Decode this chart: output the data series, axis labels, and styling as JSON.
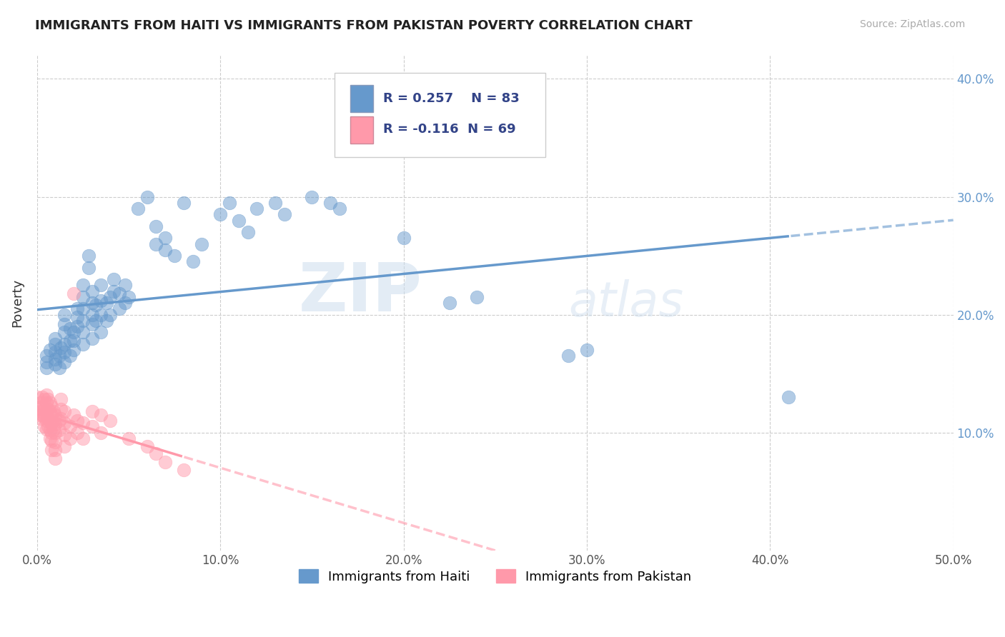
{
  "title": "IMMIGRANTS FROM HAITI VS IMMIGRANTS FROM PAKISTAN POVERTY CORRELATION CHART",
  "source": "Source: ZipAtlas.com",
  "ylabel": "Poverty",
  "xlim": [
    0.0,
    0.5
  ],
  "ylim": [
    0.0,
    0.42
  ],
  "xticks": [
    0.0,
    0.1,
    0.2,
    0.3,
    0.4,
    0.5
  ],
  "yticks": [
    0.1,
    0.2,
    0.3,
    0.4
  ],
  "xtick_labels": [
    "0.0%",
    "10.0%",
    "20.0%",
    "30.0%",
    "40.0%",
    "50.0%"
  ],
  "ytick_labels_right": [
    "10.0%",
    "20.0%",
    "30.0%",
    "40.0%"
  ],
  "haiti_color": "#6699CC",
  "pakistan_color": "#FF99AA",
  "haiti_R": 0.257,
  "haiti_N": 83,
  "pakistan_R": -0.116,
  "pakistan_N": 69,
  "legend_label_haiti": "Immigrants from Haiti",
  "legend_label_pakistan": "Immigrants from Pakistan",
  "watermark_zip": "ZIP",
  "watermark_atlas": "atlas",
  "background_color": "#ffffff",
  "grid_color": "#cccccc",
  "haiti_scatter": [
    [
      0.005,
      0.155
    ],
    [
      0.005,
      0.16
    ],
    [
      0.005,
      0.165
    ],
    [
      0.007,
      0.17
    ],
    [
      0.01,
      0.158
    ],
    [
      0.01,
      0.162
    ],
    [
      0.01,
      0.168
    ],
    [
      0.01,
      0.175
    ],
    [
      0.01,
      0.18
    ],
    [
      0.012,
      0.155
    ],
    [
      0.012,
      0.165
    ],
    [
      0.013,
      0.172
    ],
    [
      0.015,
      0.16
    ],
    [
      0.015,
      0.168
    ],
    [
      0.015,
      0.175
    ],
    [
      0.015,
      0.185
    ],
    [
      0.015,
      0.192
    ],
    [
      0.015,
      0.2
    ],
    [
      0.018,
      0.165
    ],
    [
      0.018,
      0.178
    ],
    [
      0.018,
      0.188
    ],
    [
      0.02,
      0.17
    ],
    [
      0.02,
      0.178
    ],
    [
      0.02,
      0.185
    ],
    [
      0.022,
      0.19
    ],
    [
      0.022,
      0.198
    ],
    [
      0.022,
      0.205
    ],
    [
      0.025,
      0.175
    ],
    [
      0.025,
      0.185
    ],
    [
      0.025,
      0.195
    ],
    [
      0.025,
      0.205
    ],
    [
      0.025,
      0.215
    ],
    [
      0.025,
      0.225
    ],
    [
      0.028,
      0.24
    ],
    [
      0.028,
      0.25
    ],
    [
      0.03,
      0.18
    ],
    [
      0.03,
      0.192
    ],
    [
      0.03,
      0.2
    ],
    [
      0.03,
      0.21
    ],
    [
      0.03,
      0.22
    ],
    [
      0.032,
      0.195
    ],
    [
      0.032,
      0.208
    ],
    [
      0.035,
      0.185
    ],
    [
      0.035,
      0.2
    ],
    [
      0.035,
      0.212
    ],
    [
      0.035,
      0.225
    ],
    [
      0.038,
      0.195
    ],
    [
      0.038,
      0.21
    ],
    [
      0.04,
      0.2
    ],
    [
      0.04,
      0.215
    ],
    [
      0.042,
      0.22
    ],
    [
      0.042,
      0.23
    ],
    [
      0.045,
      0.205
    ],
    [
      0.045,
      0.218
    ],
    [
      0.048,
      0.21
    ],
    [
      0.048,
      0.225
    ],
    [
      0.05,
      0.215
    ],
    [
      0.055,
      0.29
    ],
    [
      0.06,
      0.3
    ],
    [
      0.065,
      0.26
    ],
    [
      0.065,
      0.275
    ],
    [
      0.07,
      0.255
    ],
    [
      0.07,
      0.265
    ],
    [
      0.075,
      0.25
    ],
    [
      0.08,
      0.295
    ],
    [
      0.085,
      0.245
    ],
    [
      0.09,
      0.26
    ],
    [
      0.1,
      0.285
    ],
    [
      0.105,
      0.295
    ],
    [
      0.11,
      0.28
    ],
    [
      0.115,
      0.27
    ],
    [
      0.12,
      0.29
    ],
    [
      0.13,
      0.295
    ],
    [
      0.135,
      0.285
    ],
    [
      0.15,
      0.3
    ],
    [
      0.16,
      0.295
    ],
    [
      0.165,
      0.29
    ],
    [
      0.2,
      0.265
    ],
    [
      0.225,
      0.21
    ],
    [
      0.24,
      0.215
    ],
    [
      0.29,
      0.165
    ],
    [
      0.3,
      0.17
    ],
    [
      0.41,
      0.13
    ]
  ],
  "pakistan_scatter": [
    [
      0.0,
      0.13
    ],
    [
      0.0,
      0.12
    ],
    [
      0.0,
      0.115
    ],
    [
      0.002,
      0.125
    ],
    [
      0.002,
      0.118
    ],
    [
      0.002,
      0.112
    ],
    [
      0.003,
      0.13
    ],
    [
      0.003,
      0.122
    ],
    [
      0.003,
      0.115
    ],
    [
      0.004,
      0.128
    ],
    [
      0.004,
      0.12
    ],
    [
      0.004,
      0.113
    ],
    [
      0.004,
      0.105
    ],
    [
      0.005,
      0.132
    ],
    [
      0.005,
      0.125
    ],
    [
      0.005,
      0.118
    ],
    [
      0.005,
      0.11
    ],
    [
      0.005,
      0.103
    ],
    [
      0.006,
      0.128
    ],
    [
      0.006,
      0.12
    ],
    [
      0.006,
      0.112
    ],
    [
      0.006,
      0.105
    ],
    [
      0.007,
      0.125
    ],
    [
      0.007,
      0.118
    ],
    [
      0.007,
      0.11
    ],
    [
      0.007,
      0.102
    ],
    [
      0.007,
      0.095
    ],
    [
      0.008,
      0.122
    ],
    [
      0.008,
      0.115
    ],
    [
      0.008,
      0.108
    ],
    [
      0.008,
      0.1
    ],
    [
      0.008,
      0.093
    ],
    [
      0.008,
      0.085
    ],
    [
      0.009,
      0.118
    ],
    [
      0.009,
      0.11
    ],
    [
      0.009,
      0.103
    ],
    [
      0.01,
      0.115
    ],
    [
      0.01,
      0.107
    ],
    [
      0.01,
      0.1
    ],
    [
      0.01,
      0.092
    ],
    [
      0.01,
      0.085
    ],
    [
      0.01,
      0.078
    ],
    [
      0.012,
      0.11
    ],
    [
      0.012,
      0.102
    ],
    [
      0.013,
      0.128
    ],
    [
      0.013,
      0.12
    ],
    [
      0.013,
      0.112
    ],
    [
      0.015,
      0.118
    ],
    [
      0.015,
      0.108
    ],
    [
      0.015,
      0.098
    ],
    [
      0.015,
      0.088
    ],
    [
      0.018,
      0.105
    ],
    [
      0.018,
      0.095
    ],
    [
      0.02,
      0.115
    ],
    [
      0.02,
      0.218
    ],
    [
      0.022,
      0.11
    ],
    [
      0.022,
      0.1
    ],
    [
      0.025,
      0.108
    ],
    [
      0.025,
      0.095
    ],
    [
      0.03,
      0.118
    ],
    [
      0.03,
      0.105
    ],
    [
      0.035,
      0.115
    ],
    [
      0.035,
      0.1
    ],
    [
      0.04,
      0.11
    ],
    [
      0.05,
      0.095
    ],
    [
      0.06,
      0.088
    ],
    [
      0.065,
      0.082
    ],
    [
      0.07,
      0.075
    ],
    [
      0.08,
      0.068
    ]
  ]
}
